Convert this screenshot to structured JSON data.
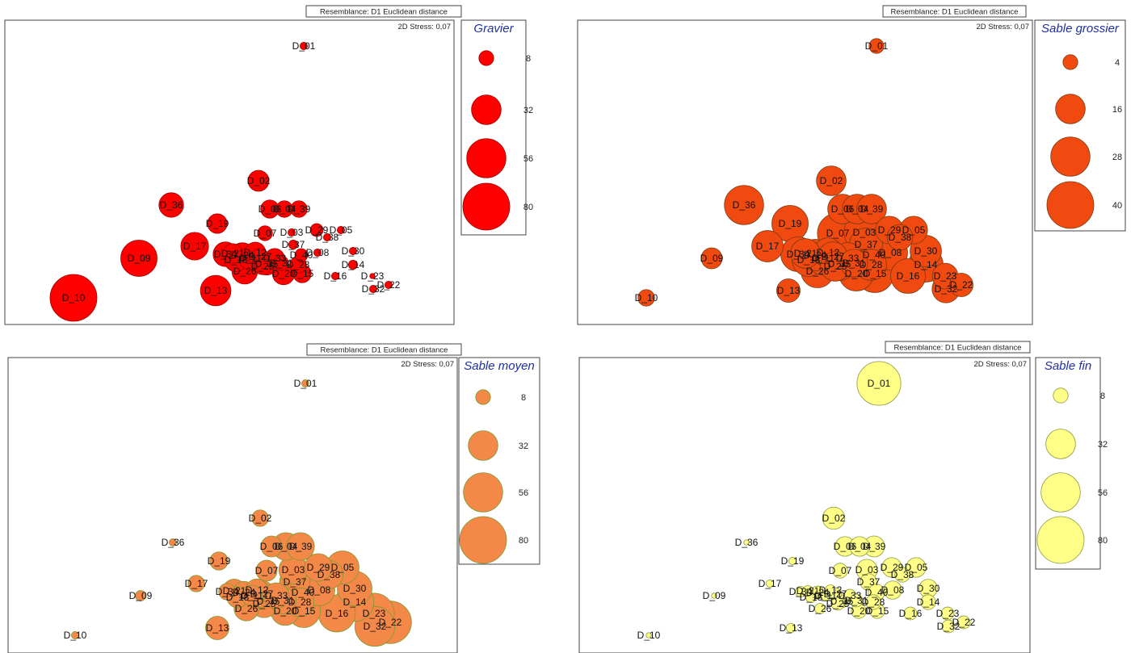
{
  "chart_data": [
    {
      "type": "scatter",
      "resemblance": "Resemblance: D1 Euclidean distance",
      "stress": "2D Stress: 0,07",
      "legend_title": "Gravier",
      "legend_values": [
        8,
        32,
        56,
        80
      ],
      "fill": "#ff0000",
      "stroke": "#a00000",
      "points": [
        {
          "label": "D_01",
          "value": 2
        },
        {
          "label": "D_02",
          "value": 16
        },
        {
          "label": "D_36",
          "value": 22
        },
        {
          "label": "D_19",
          "value": 14
        },
        {
          "label": "D_17",
          "value": 28
        },
        {
          "label": "D_09",
          "value": 48
        },
        {
          "label": "D_10",
          "value": 80
        },
        {
          "label": "D_13",
          "value": 34
        },
        {
          "label": "D_06",
          "value": 12
        },
        {
          "label": "D_04",
          "value": 10
        },
        {
          "label": "D_39",
          "value": 10
        },
        {
          "label": "D_07",
          "value": 8
        },
        {
          "label": "D_03",
          "value": 2
        },
        {
          "label": "D_29",
          "value": 6
        },
        {
          "label": "D_05",
          "value": 2
        },
        {
          "label": "D_38",
          "value": 2
        },
        {
          "label": "D_37",
          "value": 3
        },
        {
          "label": "D_40",
          "value": 6
        },
        {
          "label": "D_08",
          "value": 2
        },
        {
          "label": "D_30",
          "value": 2
        },
        {
          "label": "D_14",
          "value": 3
        },
        {
          "label": "D_23",
          "value": 1
        },
        {
          "label": "D_22",
          "value": 2
        },
        {
          "label": "D_32",
          "value": 2
        },
        {
          "label": "D_16",
          "value": 2
        },
        {
          "label": "D_15",
          "value": 12
        },
        {
          "label": "D_20",
          "value": 18
        },
        {
          "label": "D_26",
          "value": 24
        },
        {
          "label": "D_28",
          "value": 10
        },
        {
          "label": "D_35",
          "value": 18
        },
        {
          "label": "D_34",
          "value": 22
        },
        {
          "label": "D_18",
          "value": 20
        },
        {
          "label": "D_24",
          "value": 22
        },
        {
          "label": "D_11",
          "value": 20
        },
        {
          "label": "D_12",
          "value": 16
        },
        {
          "label": "D_21",
          "value": 14
        },
        {
          "label": "D_33",
          "value": 14
        },
        {
          "label": "D_27",
          "value": 10
        },
        {
          "label": "D_25",
          "value": 10
        },
        {
          "label": "D_31",
          "value": 8
        }
      ]
    },
    {
      "type": "scatter",
      "resemblance": "Resemblance: D1 Euclidean distance",
      "stress": "2D Stress: 0,07",
      "legend_title": "Sable grossier",
      "legend_values": [
        4,
        16,
        28,
        40
      ],
      "fill": "#f04a10",
      "stroke": "#7a3a10",
      "points": [
        {
          "label": "D_01",
          "value": 4
        },
        {
          "label": "D_02",
          "value": 16
        },
        {
          "label": "D_36",
          "value": 28
        },
        {
          "label": "D_19",
          "value": 24
        },
        {
          "label": "D_17",
          "value": 18
        },
        {
          "label": "D_09",
          "value": 8
        },
        {
          "label": "D_10",
          "value": 5
        },
        {
          "label": "D_13",
          "value": 10
        },
        {
          "label": "D_06",
          "value": 16
        },
        {
          "label": "D_04",
          "value": 16
        },
        {
          "label": "D_39",
          "value": 16
        },
        {
          "label": "D_07",
          "value": 30
        },
        {
          "label": "D_03",
          "value": 30
        },
        {
          "label": "D_29",
          "value": 14
        },
        {
          "label": "D_05",
          "value": 14
        },
        {
          "label": "D_38",
          "value": 12
        },
        {
          "label": "D_37",
          "value": 20
        },
        {
          "label": "D_40",
          "value": 26
        },
        {
          "label": "D_08",
          "value": 22
        },
        {
          "label": "D_30",
          "value": 18
        },
        {
          "label": "D_14",
          "value": 22
        },
        {
          "label": "D_23",
          "value": 12
        },
        {
          "label": "D_22",
          "value": 10
        },
        {
          "label": "D_32",
          "value": 14
        },
        {
          "label": "D_16",
          "value": 22
        },
        {
          "label": "D_15",
          "value": 26
        },
        {
          "label": "D_20",
          "value": 22
        },
        {
          "label": "D_26",
          "value": 20
        },
        {
          "label": "D_28",
          "value": 18
        },
        {
          "label": "D_35",
          "value": 20
        },
        {
          "label": "D_34",
          "value": 22
        },
        {
          "label": "D_18",
          "value": 20
        },
        {
          "label": "D_24",
          "value": 18
        },
        {
          "label": "D_11",
          "value": 20
        },
        {
          "label": "D_12",
          "value": 16
        },
        {
          "label": "D_21",
          "value": 16
        },
        {
          "label": "D_33",
          "value": 18
        },
        {
          "label": "D_27",
          "value": 16
        },
        {
          "label": "D_25",
          "value": 16
        },
        {
          "label": "D_31",
          "value": 14
        }
      ]
    },
    {
      "type": "scatter",
      "resemblance": "Resemblance: D1 Euclidean distance",
      "stress": "2D Stress: 0,07",
      "legend_title": "Sable moyen",
      "legend_values": [
        8,
        32,
        56,
        80
      ],
      "fill": "#f48848",
      "stroke": "#7c9a30",
      "points": [
        {
          "label": "D_01",
          "value": 2
        },
        {
          "label": "D_02",
          "value": 10
        },
        {
          "label": "D_36",
          "value": 2
        },
        {
          "label": "D_19",
          "value": 12
        },
        {
          "label": "D_17",
          "value": 10
        },
        {
          "label": "D_09",
          "value": 4
        },
        {
          "label": "D_10",
          "value": 2
        },
        {
          "label": "D_13",
          "value": 20
        },
        {
          "label": "D_06",
          "value": 16
        },
        {
          "label": "D_04",
          "value": 28
        },
        {
          "label": "D_39",
          "value": 28
        },
        {
          "label": "D_07",
          "value": 16
        },
        {
          "label": "D_03",
          "value": 30
        },
        {
          "label": "D_29",
          "value": 28
        },
        {
          "label": "D_05",
          "value": 40
        },
        {
          "label": "D_38",
          "value": 30
        },
        {
          "label": "D_37",
          "value": 34
        },
        {
          "label": "D_40",
          "value": 40
        },
        {
          "label": "D_08",
          "value": 36
        },
        {
          "label": "D_30",
          "value": 44
        },
        {
          "label": "D_14",
          "value": 54
        },
        {
          "label": "D_23",
          "value": 60
        },
        {
          "label": "D_22",
          "value": 66
        },
        {
          "label": "D_32",
          "value": 58
        },
        {
          "label": "D_16",
          "value": 50
        },
        {
          "label": "D_15",
          "value": 40
        },
        {
          "label": "D_20",
          "value": 30
        },
        {
          "label": "D_26",
          "value": 22
        },
        {
          "label": "D_28",
          "value": 30
        },
        {
          "label": "D_35",
          "value": 28
        },
        {
          "label": "D_34",
          "value": 10
        },
        {
          "label": "D_18",
          "value": 16
        },
        {
          "label": "D_24",
          "value": 18
        },
        {
          "label": "D_11",
          "value": 16
        },
        {
          "label": "D_12",
          "value": 18
        },
        {
          "label": "D_21",
          "value": 20
        },
        {
          "label": "D_33",
          "value": 24
        },
        {
          "label": "D_27",
          "value": 26
        },
        {
          "label": "D_25",
          "value": 28
        },
        {
          "label": "D_31",
          "value": 26
        }
      ]
    },
    {
      "type": "scatter",
      "resemblance": "Resemblance: D1 Euclidean distance",
      "stress": "2D Stress: 0,07",
      "legend_title": "Sable fin",
      "legend_values": [
        8,
        32,
        56,
        80
      ],
      "fill": "#ffff88",
      "stroke": "#8a9a40",
      "points": [
        {
          "label": "D_01",
          "value": 70
        },
        {
          "label": "D_02",
          "value": 18
        },
        {
          "label": "D_36",
          "value": 1
        },
        {
          "label": "D_19",
          "value": 2
        },
        {
          "label": "D_17",
          "value": 2
        },
        {
          "label": "D_09",
          "value": 1
        },
        {
          "label": "D_10",
          "value": 1
        },
        {
          "label": "D_13",
          "value": 3
        },
        {
          "label": "D_06",
          "value": 14
        },
        {
          "label": "D_04",
          "value": 14
        },
        {
          "label": "D_39",
          "value": 16
        },
        {
          "label": "D_07",
          "value": 8
        },
        {
          "label": "D_03",
          "value": 16
        },
        {
          "label": "D_29",
          "value": 14
        },
        {
          "label": "D_05",
          "value": 14
        },
        {
          "label": "D_38",
          "value": 8
        },
        {
          "label": "D_37",
          "value": 10
        },
        {
          "label": "D_40",
          "value": 10
        },
        {
          "label": "D_08",
          "value": 12
        },
        {
          "label": "D_30",
          "value": 12
        },
        {
          "label": "D_14",
          "value": 8
        },
        {
          "label": "D_23",
          "value": 6
        },
        {
          "label": "D_22",
          "value": 6
        },
        {
          "label": "D_32",
          "value": 6
        },
        {
          "label": "D_16",
          "value": 6
        },
        {
          "label": "D_15",
          "value": 8
        },
        {
          "label": "D_20",
          "value": 8
        },
        {
          "label": "D_26",
          "value": 4
        },
        {
          "label": "D_28",
          "value": 8
        },
        {
          "label": "D_35",
          "value": 6
        },
        {
          "label": "D_34",
          "value": 4
        },
        {
          "label": "D_18",
          "value": 4
        },
        {
          "label": "D_24",
          "value": 6
        },
        {
          "label": "D_11",
          "value": 4
        },
        {
          "label": "D_12",
          "value": 4
        },
        {
          "label": "D_21",
          "value": 4
        },
        {
          "label": "D_33",
          "value": 6
        },
        {
          "label": "D_27",
          "value": 6
        },
        {
          "label": "D_25",
          "value": 6
        },
        {
          "label": "D_31",
          "value": 6
        }
      ]
    }
  ]
}
